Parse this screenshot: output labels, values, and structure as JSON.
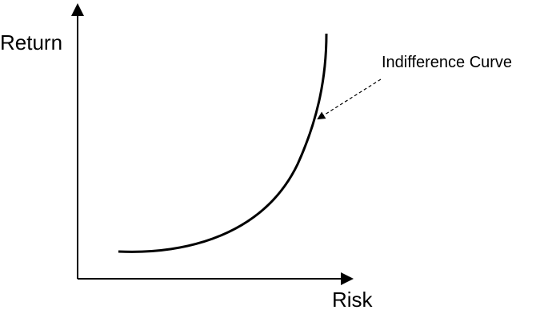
{
  "axes": {
    "y_label": "Return",
    "x_label": "Risk"
  },
  "annotation": "Indifference Curve"
}
